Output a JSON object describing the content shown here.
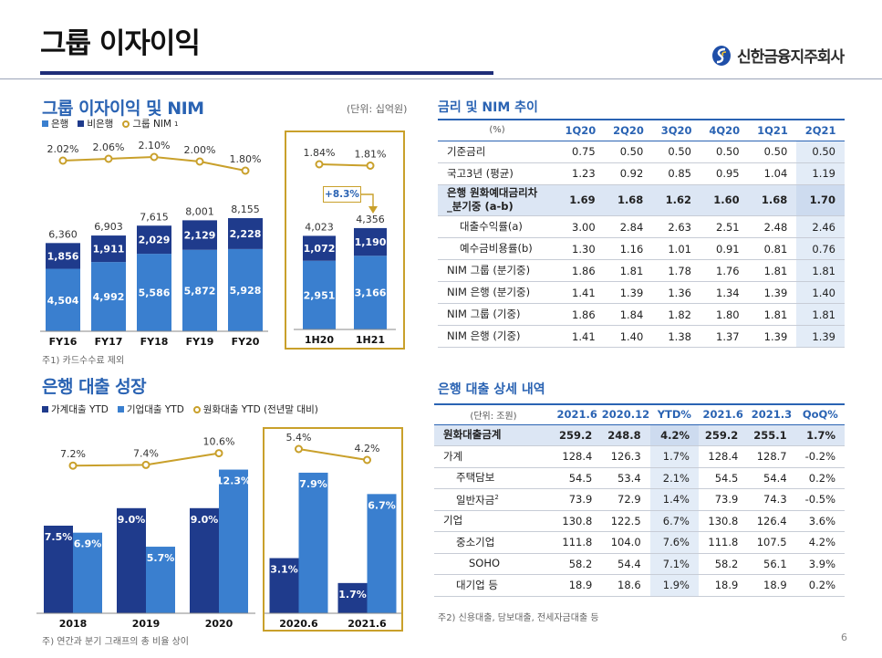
{
  "header": {
    "title": "그룹 이자이익",
    "brand_name": "신한금융지주회사",
    "page_number": "6"
  },
  "colors": {
    "bank": "#3a7fcf",
    "non_bank": "#1f3b8c",
    "nim_line": "#c9a02b",
    "household": "#1f3b8c",
    "corporate": "#3a7fcf"
  },
  "icons": {
    "brand": "shinhan-logo-icon"
  },
  "interest_section": {
    "title": "그룹 이자이익 및 NIM",
    "unit": "(단위: 십억원)",
    "legend": {
      "bank": "은행",
      "non_bank": "비은행",
      "nim": "그룹 NIM",
      "nim_sup": "1"
    },
    "footnote": "주1) 카드수수료 제외",
    "growth_label": "+8.3%"
  },
  "loan_section": {
    "title": "은행 대출 성장",
    "legend": {
      "household": "가계대출 YTD",
      "corporate": "기업대출 YTD",
      "krw": "원화대출 YTD (전년말 대비)"
    },
    "footnote": "주) 연간과 분기 그래프의 총 비율 상이"
  },
  "chart_data": [
    {
      "type": "bar",
      "stacked": true,
      "categories": [
        "FY16",
        "FY17",
        "FY18",
        "FY19",
        "FY20"
      ],
      "series": [
        {
          "name": "은행",
          "values": [
            4504,
            4992,
            5586,
            5872,
            5928
          ]
        },
        {
          "name": "비은행",
          "values": [
            1856,
            1911,
            2029,
            2129,
            2228
          ]
        }
      ],
      "totals": [
        6360,
        6903,
        7615,
        8001,
        8155
      ],
      "line": {
        "name": "그룹 NIM",
        "values": [
          2.02,
          2.06,
          2.1,
          2.0,
          1.8
        ],
        "labels": [
          "2.02%",
          "2.06%",
          "2.10%",
          "2.00%",
          "1.80%"
        ]
      }
    },
    {
      "type": "bar",
      "stacked": true,
      "categories": [
        "1H20",
        "1H21"
      ],
      "series": [
        {
          "name": "은행",
          "values": [
            2951,
            3166
          ]
        },
        {
          "name": "비은행",
          "values": [
            1072,
            1190
          ]
        }
      ],
      "totals": [
        4023,
        4356
      ],
      "line": {
        "name": "그룹 NIM",
        "values": [
          1.84,
          1.81
        ],
        "labels": [
          "1.84%",
          "1.81%"
        ]
      }
    },
    {
      "type": "bar",
      "categories": [
        "2018",
        "2019",
        "2020"
      ],
      "series": [
        {
          "name": "가계대출 YTD",
          "values": [
            7.5,
            9.0,
            9.0
          ],
          "labels": [
            "7.5%",
            "9.0%",
            "9.0%"
          ]
        },
        {
          "name": "기업대출 YTD",
          "values": [
            6.9,
            5.7,
            12.3
          ],
          "labels": [
            "6.9%",
            "5.7%",
            "12.3%"
          ]
        }
      ],
      "line": {
        "name": "원화대출 YTD (전년말 대비)",
        "values": [
          7.2,
          7.4,
          10.6
        ],
        "labels": [
          "7.2%",
          "7.4%",
          "10.6%"
        ]
      }
    },
    {
      "type": "bar",
      "categories": [
        "2020.6",
        "2021.6"
      ],
      "series": [
        {
          "name": "가계대출 YTD",
          "values": [
            3.1,
            1.7
          ],
          "labels": [
            "3.1%",
            "1.7%"
          ]
        },
        {
          "name": "기업대출 YTD",
          "values": [
            7.9,
            6.7
          ],
          "labels": [
            "7.9%",
            "6.7%"
          ]
        }
      ],
      "line": {
        "name": "원화대출 YTD (전년말 대비)",
        "values": [
          5.4,
          4.2
        ],
        "labels": [
          "5.4%",
          "4.2%"
        ]
      }
    },
    {
      "type": "table",
      "title": "금리 및 NIM 추이",
      "columns": [
        "(%)",
        "1Q20",
        "2Q20",
        "3Q20",
        "4Q20",
        "1Q21",
        "2Q21"
      ],
      "rows": [
        {
          "label": "기준금리",
          "values": [
            "0.75",
            "0.50",
            "0.50",
            "0.50",
            "0.50",
            "0.50"
          ]
        },
        {
          "label": "국고3년 (평균)",
          "values": [
            "1.23",
            "0.92",
            "0.85",
            "0.95",
            "1.04",
            "1.19"
          ]
        },
        {
          "label": "은행 원화예대금리차",
          "label2": "_분기중 (a-b)",
          "bold": true,
          "values": [
            "1.69",
            "1.68",
            "1.62",
            "1.60",
            "1.68",
            "1.70"
          ]
        },
        {
          "label": "대출수익률(a)",
          "indent": 1,
          "values": [
            "3.00",
            "2.84",
            "2.63",
            "2.51",
            "2.48",
            "2.46"
          ]
        },
        {
          "label": "예수금비용률(b)",
          "indent": 1,
          "values": [
            "1.30",
            "1.16",
            "1.01",
            "0.91",
            "0.81",
            "0.76"
          ]
        },
        {
          "label": "NIM 그룹 (분기중)",
          "values": [
            "1.86",
            "1.81",
            "1.78",
            "1.76",
            "1.81",
            "1.81"
          ]
        },
        {
          "label": "NIM 은행 (분기중)",
          "values": [
            "1.41",
            "1.39",
            "1.36",
            "1.34",
            "1.39",
            "1.40"
          ]
        },
        {
          "label": "NIM 그룹 (기중)",
          "values": [
            "1.86",
            "1.84",
            "1.82",
            "1.80",
            "1.81",
            "1.81"
          ]
        },
        {
          "label": "NIM 은행 (기중)",
          "values": [
            "1.41",
            "1.40",
            "1.38",
            "1.37",
            "1.39",
            "1.39"
          ]
        }
      ]
    },
    {
      "type": "table",
      "title": "은행 대출 상세 내역",
      "columns": [
        "(단위: 조원)",
        "2021.6",
        "2020.12",
        "YTD%",
        "2021.6",
        "2021.3",
        "QoQ%"
      ],
      "rows": [
        {
          "label": "원화대출금계",
          "bold": true,
          "values": [
            "259.2",
            "248.8",
            "4.2%",
            "259.2",
            "255.1",
            "1.7%"
          ]
        },
        {
          "label": "가계",
          "indent": 0,
          "values": [
            "128.4",
            "126.3",
            "1.7%",
            "128.4",
            "128.7",
            "-0.2%"
          ]
        },
        {
          "label": "주택담보",
          "indent": 1,
          "values": [
            "54.5",
            "53.4",
            "2.1%",
            "54.5",
            "54.4",
            "0.2%"
          ]
        },
        {
          "label": "일반자금",
          "sup": "2",
          "indent": 1,
          "values": [
            "73.9",
            "72.9",
            "1.4%",
            "73.9",
            "74.3",
            "-0.5%"
          ]
        },
        {
          "label": "기업",
          "indent": 0,
          "values": [
            "130.8",
            "122.5",
            "6.7%",
            "130.8",
            "126.4",
            "3.6%"
          ]
        },
        {
          "label": "중소기업",
          "indent": 1,
          "values": [
            "111.8",
            "104.0",
            "7.6%",
            "111.8",
            "107.5",
            "4.2%"
          ]
        },
        {
          "label": "SOHO",
          "indent": 2,
          "values": [
            "58.2",
            "54.4",
            "7.1%",
            "58.2",
            "56.1",
            "3.9%"
          ]
        },
        {
          "label": "대기업 등",
          "indent": 1,
          "values": [
            "18.9",
            "18.6",
            "1.9%",
            "18.9",
            "18.9",
            "0.2%"
          ]
        }
      ],
      "footnote": "주2) 신용대출, 담보대출, 전세자금대출 등"
    }
  ]
}
